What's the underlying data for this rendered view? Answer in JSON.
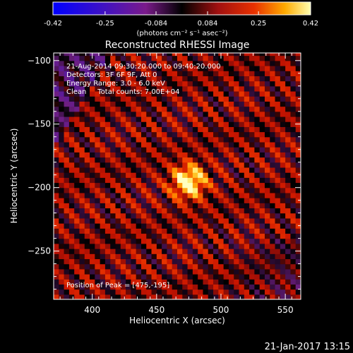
{
  "chart_data": {
    "type": "heatmap",
    "title": "Reconstructed RHESSI Image",
    "xlabel": "Heliocentric X (arcsec)",
    "ylabel": "Heliocentric Y (arcsec)",
    "xlim": [
      370,
      562
    ],
    "ylim": [
      -288,
      -94
    ],
    "xticks": [
      400,
      450,
      500,
      550
    ],
    "yticks": [
      -100,
      -150,
      -200,
      -250
    ],
    "colorbar": {
      "unit_label": "(photons cm⁻² s⁻¹ asec⁻²)",
      "range": [
        -0.42,
        0.42
      ],
      "tick_labels": [
        "-0.42",
        "-0.25",
        "-0.084",
        "0.084",
        "0.25",
        "0.42"
      ]
    },
    "annotations": [
      "21-Aug-2014 09:30:20.000 to 09:40:20.000",
      "Detectors: 3F 6F 9F, Att 0",
      "Energy Range: 3.0 - 6.0 keV",
      "Clean     Total counts: 7.00E+04"
    ],
    "peak_label": "Position of Peak = [475,-195]",
    "peak": [
      475,
      -195
    ],
    "grid": false
  },
  "footer": {
    "timestamp": "21-Jan-2017 13:15"
  }
}
